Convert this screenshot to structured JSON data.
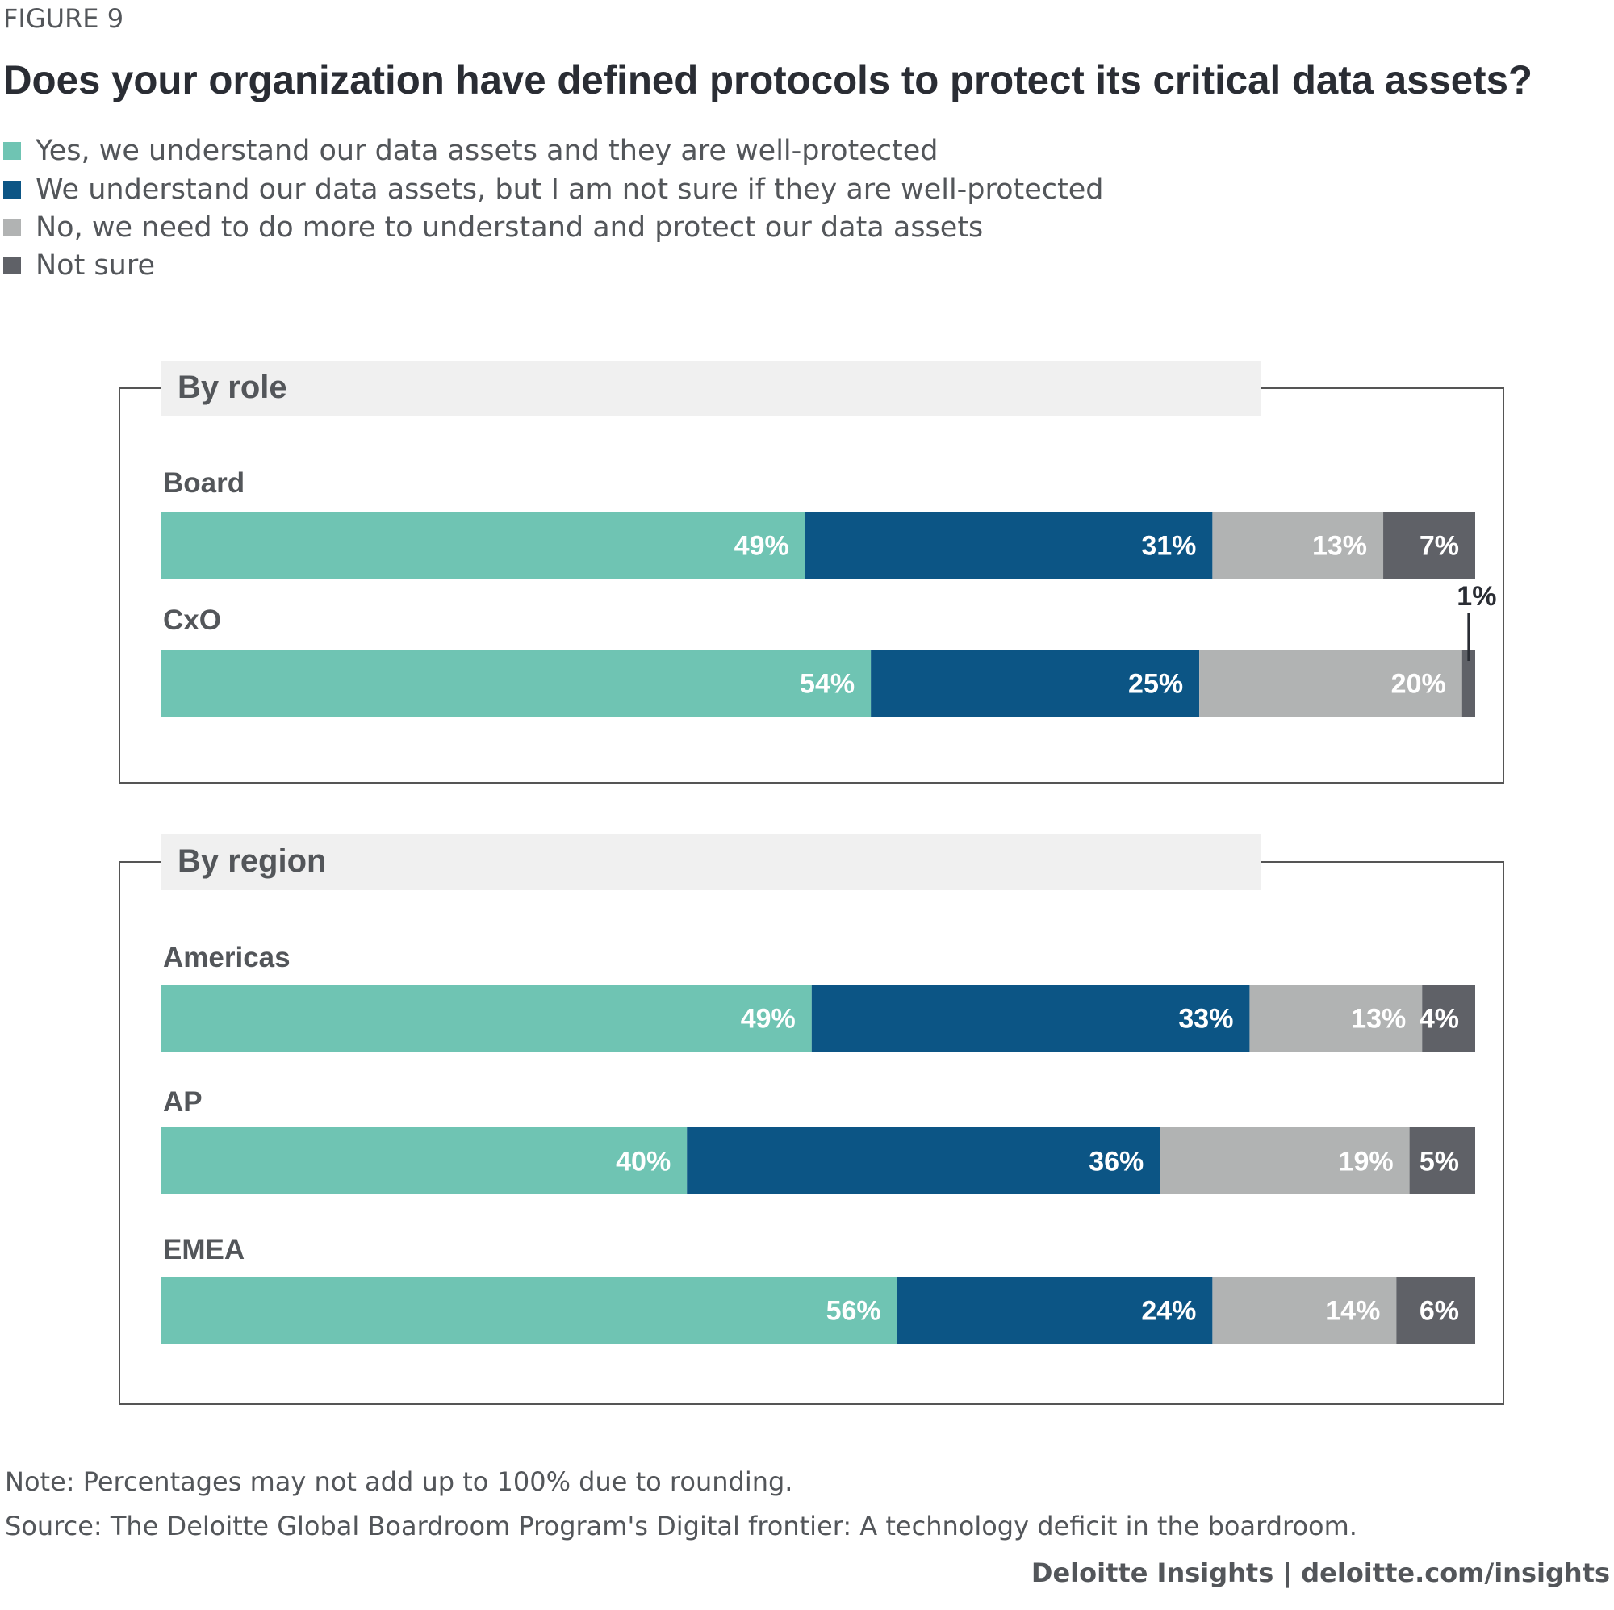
{
  "figure_label": "FIGURE 9",
  "title": "Does your organization have defined protocols to protect its critical data assets?",
  "note": "Note: Percentages may not add up to 100% due to rounding.",
  "source": "Source: The Deloitte Global Boardroom Program's Digital frontier: A technology deficit in the boardroom.",
  "footer": "Deloitte Insights | deloitte.com/insights",
  "colors": {
    "yes_protected": "#6fc4b3",
    "not_sure_protected": "#0c5585",
    "need_more": "#b1b3b3",
    "not_sure": "#5f6167",
    "panel_header_bg": "#f0f0f0",
    "panel_border": "#555555"
  },
  "chart_data": {
    "type": "bar",
    "orientation": "horizontal",
    "stacked": true,
    "title": "Does your organization have defined protocols to protect its critical data assets?",
    "legend": [
      "Yes, we understand our data assets and they are well-protected",
      "We understand our data assets, but I am not sure if they are well-protected",
      "No, we need to do more to understand and protect our data assets",
      "Not sure"
    ],
    "legend_position": "top-left",
    "xlim": [
      0,
      100
    ],
    "panels": [
      {
        "title": "By role",
        "rows": [
          {
            "label": "Board",
            "values": [
              49,
              31,
              13,
              7
            ],
            "value_labels": [
              "49%",
              "31%",
              "13%",
              "7%"
            ]
          },
          {
            "label": "CxO",
            "values": [
              54,
              25,
              20,
              1
            ],
            "value_labels": [
              "54%",
              "25%",
              "20%",
              "1%"
            ]
          }
        ]
      },
      {
        "title": "By region",
        "rows": [
          {
            "label": "Americas",
            "values": [
              49,
              33,
              13,
              4
            ],
            "value_labels": [
              "49%",
              "33%",
              "13%",
              "4%"
            ]
          },
          {
            "label": "AP",
            "values": [
              40,
              36,
              19,
              5
            ],
            "value_labels": [
              "40%",
              "36%",
              "19%",
              "5%"
            ]
          },
          {
            "label": "EMEA",
            "values": [
              56,
              24,
              14,
              6
            ],
            "value_labels": [
              "56%",
              "24%",
              "14%",
              "6%"
            ]
          }
        ]
      }
    ]
  }
}
